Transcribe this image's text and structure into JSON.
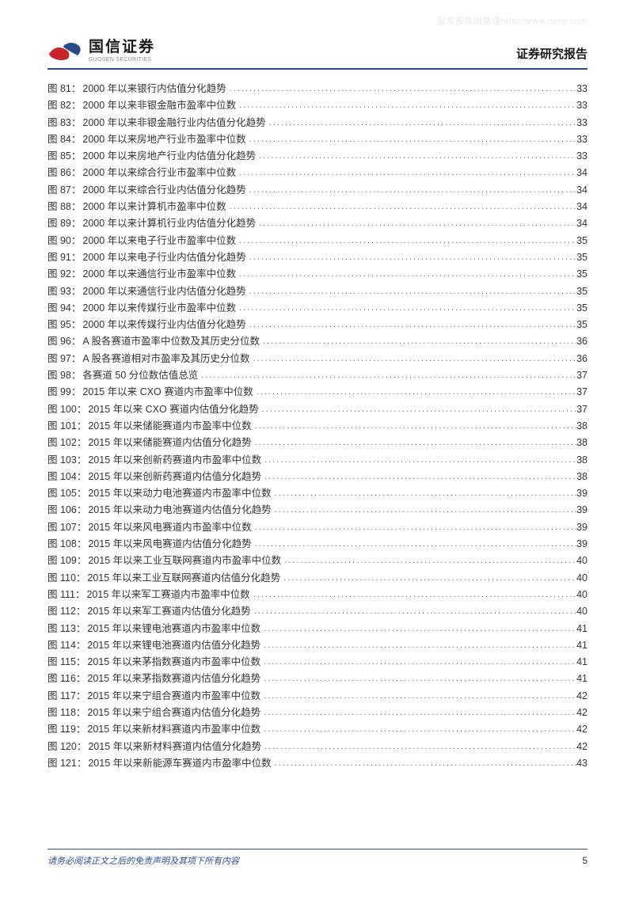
{
  "watermark": "股票报告网整理http://www.nxny.com",
  "header": {
    "logo_cn": "国信证券",
    "logo_en": "GUOSEN SECURITIES",
    "title": "证券研究报告"
  },
  "toc": [
    {
      "label": "图 81：",
      "desc": "2000 年以来银行内估值分化趋势",
      "page": "33"
    },
    {
      "label": "图 82：",
      "desc": "2000 年以来非银金融市盈率中位数",
      "page": "33"
    },
    {
      "label": "图 83：",
      "desc": "2000 年以来非银金融行业内估值分化趋势",
      "page": "33"
    },
    {
      "label": "图 84：",
      "desc": "2000 年以来房地产行业市盈率中位数",
      "page": "33"
    },
    {
      "label": "图 85：",
      "desc": "2000 年以来房地产行业内估值分化趋势",
      "page": "33"
    },
    {
      "label": "图 86：",
      "desc": "2000 年以来综合行业市盈率中位数",
      "page": "34"
    },
    {
      "label": "图 87：",
      "desc": "2000 年以来综合行业内估值分化趋势",
      "page": "34"
    },
    {
      "label": "图 88：",
      "desc": "2000 年以来计算机市盈率中位数",
      "page": "34"
    },
    {
      "label": "图 89：",
      "desc": "2000 年以来计算机行业内估值分化趋势",
      "page": "34"
    },
    {
      "label": "图 90：",
      "desc": "2000 年以来电子行业市盈率中位数",
      "page": "35"
    },
    {
      "label": "图 91：",
      "desc": "2000 年以来电子行业内估值分化趋势",
      "page": "35"
    },
    {
      "label": "图 92：",
      "desc": "2000 年以来通信行业市盈率中位数",
      "page": "35"
    },
    {
      "label": "图 93：",
      "desc": "2000 年以来通信行业内估值分化趋势",
      "page": "35"
    },
    {
      "label": "图 94：",
      "desc": "2000 年以来传媒行业市盈率中位数",
      "page": "35"
    },
    {
      "label": "图 95：",
      "desc": "2000 年以来传媒行业内估值分化趋势",
      "page": "35"
    },
    {
      "label": "图 96：",
      "desc": "A 股各赛道市盈率中位数及其历史分位数",
      "page": "36"
    },
    {
      "label": "图 97：",
      "desc": "A 股各赛道相对市盈率及其历史分位数",
      "page": "36"
    },
    {
      "label": "图 98：",
      "desc": "各赛道 50 分位数估值总览",
      "page": "37"
    },
    {
      "label": "图 99：",
      "desc": "2015 年以来 CXO 赛道内市盈率中位数",
      "page": "37"
    },
    {
      "label": "图 100：",
      "desc": "2015 年以来 CXO 赛道内估值分化趋势",
      "page": "37"
    },
    {
      "label": "图 101：",
      "desc": "2015 年以来储能赛道内市盈率中位数",
      "page": "38"
    },
    {
      "label": "图 102：",
      "desc": "2015 年以来储能赛道内估值分化趋势",
      "page": "38"
    },
    {
      "label": "图 103：",
      "desc": "2015 年以来创新药赛道内市盈率中位数",
      "page": "38"
    },
    {
      "label": "图 104：",
      "desc": "2015 年以来创新药赛道内估值分化趋势",
      "page": "38"
    },
    {
      "label": "图 105：",
      "desc": "2015 年以来动力电池赛道内市盈率中位数",
      "page": "39"
    },
    {
      "label": "图 106：",
      "desc": "2015 年以来动力电池赛道内估值分化趋势",
      "page": "39"
    },
    {
      "label": "图 107：",
      "desc": "2015 年以来风电赛道内市盈率中位数",
      "page": "39"
    },
    {
      "label": "图 108：",
      "desc": "2015 年以来风电赛道内估值分化趋势",
      "page": "39"
    },
    {
      "label": "图 109：",
      "desc": "2015 年以来工业互联网赛道内市盈率中位数",
      "page": "40"
    },
    {
      "label": "图 110：",
      "desc": "2015 年以来工业互联网赛道内估值分化趋势",
      "page": "40"
    },
    {
      "label": "图 111：",
      "desc": "2015 年以来军工赛道内市盈率中位数",
      "page": "40"
    },
    {
      "label": "图 112：",
      "desc": "2015 年以来军工赛道内估值分化趋势",
      "page": "40"
    },
    {
      "label": "图 113：",
      "desc": "2015 年以来锂电池赛道内市盈率中位数",
      "page": "41"
    },
    {
      "label": "图 114：",
      "desc": "2015 年以来锂电池赛道内估值分化趋势",
      "page": "41"
    },
    {
      "label": "图 115：",
      "desc": "2015 年以来茅指数赛道内市盈率中位数",
      "page": "41"
    },
    {
      "label": "图 116：",
      "desc": "2015 年以来茅指数赛道内估值分化趋势",
      "page": "41"
    },
    {
      "label": "图 117：",
      "desc": "2015 年以来宁组合赛道内市盈率中位数",
      "page": "42"
    },
    {
      "label": "图 118：",
      "desc": "2015 年以来宁组合赛道内估值分化趋势",
      "page": "42"
    },
    {
      "label": "图 119：",
      "desc": "2015 年以来新材料赛道内市盈率中位数",
      "page": "42"
    },
    {
      "label": "图 120：",
      "desc": "2015 年以来新材料赛道内估值分化趋势",
      "page": "42"
    },
    {
      "label": "图 121：",
      "desc": "2015 年以来新能源车赛道内市盈率中位数",
      "page": "43"
    }
  ],
  "footer": {
    "disclaimer": "请务必阅读正文之后的免责声明及其项下所有内容",
    "page_number": "5"
  },
  "colors": {
    "border": "#2a4a8a",
    "logo_red": "#c8242b",
    "logo_blue": "#2a4a8a"
  }
}
